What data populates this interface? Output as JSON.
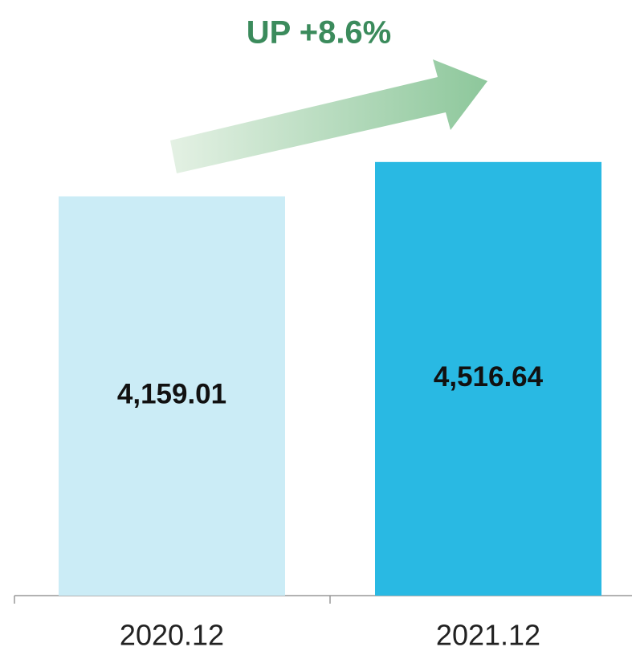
{
  "chart_data": {
    "type": "bar",
    "annotation": "UP +8.6%",
    "categories": [
      "2020.12",
      "2021.12"
    ],
    "values": [
      4159.01,
      4516.64
    ],
    "value_labels": [
      "4,159.01",
      "4,516.64"
    ],
    "colors": [
      "#cbecf6",
      "#29b9e3"
    ],
    "ylim": [
      0,
      5000
    ]
  }
}
